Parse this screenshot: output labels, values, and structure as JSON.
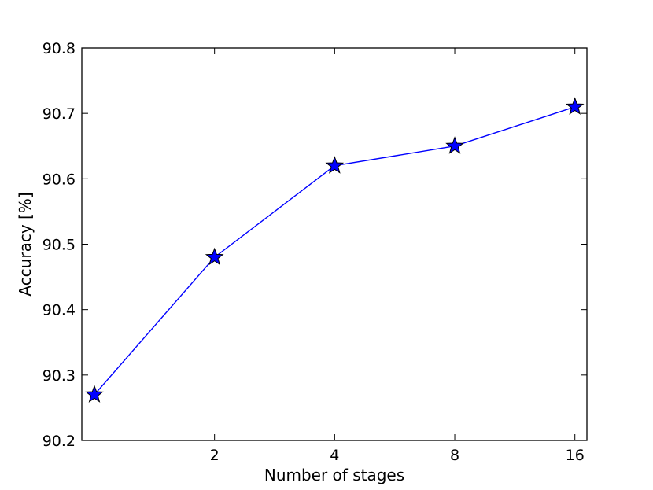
{
  "chart_data": {
    "type": "line",
    "title": "",
    "xlabel": "Number of stages",
    "ylabel": "Accuracy [%]",
    "x_scale": "log2",
    "x": [
      1,
      2,
      4,
      8,
      16
    ],
    "x_tick_values": [
      2,
      4,
      8,
      16
    ],
    "x_tick_labels": [
      "2",
      "4",
      "8",
      "16"
    ],
    "xlim": [
      0.93,
      17.15
    ],
    "y_tick_values": [
      90.2,
      90.3,
      90.4,
      90.5,
      90.6,
      90.7,
      90.8
    ],
    "y_tick_labels": [
      "90.2",
      "90.3",
      "90.4",
      "90.5",
      "90.6",
      "90.7",
      "90.8"
    ],
    "ylim": [
      90.2,
      90.8
    ],
    "grid": false,
    "series": [
      {
        "values": [
          90.27,
          90.48,
          90.62,
          90.65,
          90.71
        ],
        "color": "#0000ff",
        "marker": "star"
      }
    ]
  }
}
